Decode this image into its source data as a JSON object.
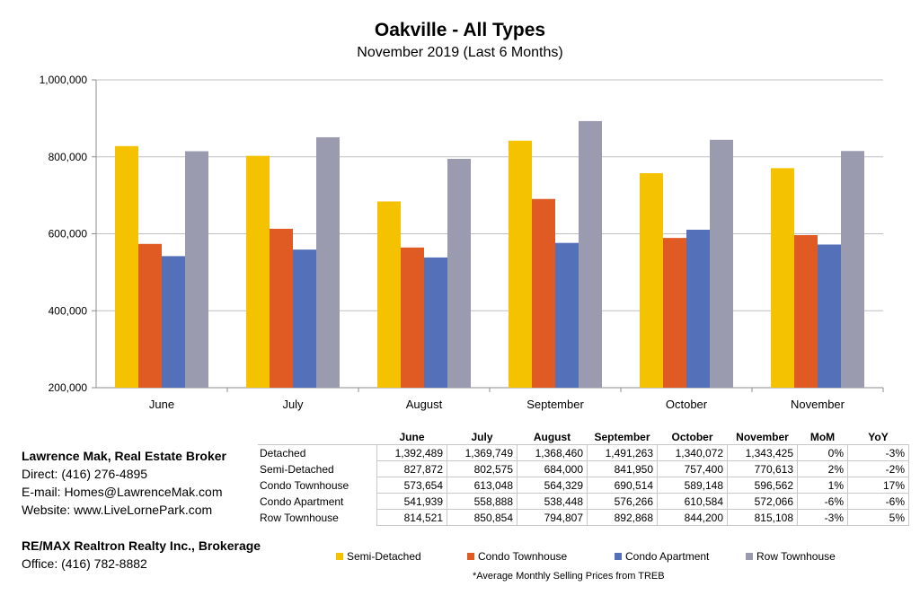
{
  "chart_data": {
    "type": "bar",
    "title": "Oakville - All Types",
    "subtitle": "November 2019 (Last 6 Months)",
    "categories": [
      "June",
      "July",
      "August",
      "September",
      "October",
      "November"
    ],
    "ylim": [
      200000,
      1000000
    ],
    "yticks": [
      "200,000",
      "400,000",
      "600,000",
      "800,000",
      "1,000,000"
    ],
    "ytick_values": [
      200000,
      400000,
      600000,
      800000,
      1000000
    ],
    "grid": true,
    "legend_position": "bottom",
    "series": [
      {
        "name": "Semi-Detached",
        "color": "#F5C200",
        "values": [
          827872,
          802575,
          684000,
          841950,
          757400,
          770613
        ]
      },
      {
        "name": "Condo Townhouse",
        "color": "#E05A24",
        "values": [
          573654,
          613048,
          564329,
          690514,
          589148,
          596562
        ]
      },
      {
        "name": "Condo Apartment",
        "color": "#5470B8",
        "values": [
          541939,
          558888,
          538448,
          576266,
          610584,
          572066
        ]
      },
      {
        "name": "Row Townhouse",
        "color": "#9A9BAE",
        "values": [
          814521,
          850854,
          794807,
          892868,
          844200,
          815108
        ]
      }
    ]
  },
  "table": {
    "headers": [
      "June",
      "July",
      "August",
      "September",
      "October",
      "November",
      "MoM",
      "YoY"
    ],
    "rows": [
      {
        "label": "Detached",
        "cells": [
          "1,392,489",
          "1,369,749",
          "1,368,460",
          "1,491,263",
          "1,340,072",
          "1,343,425",
          "0%",
          "-3%"
        ]
      },
      {
        "label": "Semi-Detached",
        "cells": [
          "827,872",
          "802,575",
          "684,000",
          "841,950",
          "757,400",
          "770,613",
          "2%",
          "-2%"
        ]
      },
      {
        "label": "Condo Townhouse",
        "cells": [
          "573,654",
          "613,048",
          "564,329",
          "690,514",
          "589,148",
          "596,562",
          "1%",
          "17%"
        ]
      },
      {
        "label": "Condo Apartment",
        "cells": [
          "541,939",
          "558,888",
          "538,448",
          "576,266",
          "610,584",
          "572,066",
          "-6%",
          "-6%"
        ]
      },
      {
        "label": "Row Townhouse",
        "cells": [
          "814,521",
          "850,854",
          "794,807",
          "892,868",
          "844,200",
          "815,108",
          "-3%",
          "5%"
        ]
      }
    ]
  },
  "contact": {
    "name": "Lawrence Mak, Real Estate Broker",
    "direct": "Direct:  (416) 276-4895",
    "email": "E-mail:  Homes@LawrenceMak.com",
    "website": "Website: www.LiveLornePark.com"
  },
  "brokerage": {
    "name": "RE/MAX Realtron Realty Inc., Brokerage",
    "office": "Office: (416) 782-8882"
  },
  "footnote": "*Average Monthly Selling Prices  from TREB"
}
